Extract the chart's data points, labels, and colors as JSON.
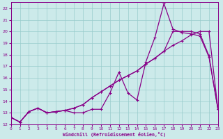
{
  "xlabel": "Windchill (Refroidissement éolien,°C)",
  "xlim": [
    0,
    23
  ],
  "ylim": [
    12,
    22.5
  ],
  "xticks": [
    0,
    1,
    2,
    3,
    4,
    5,
    6,
    7,
    8,
    9,
    10,
    11,
    12,
    13,
    14,
    15,
    16,
    17,
    18,
    19,
    20,
    21,
    22,
    23
  ],
  "yticks": [
    12,
    13,
    14,
    15,
    16,
    17,
    18,
    19,
    20,
    21,
    22
  ],
  "bg_color": "#cceaea",
  "line_color": "#880088",
  "grid_color": "#99cccc",
  "line1_x": [
    0,
    1,
    2,
    3,
    4,
    5,
    6,
    7,
    8,
    9,
    10,
    11,
    12,
    13,
    14,
    15,
    16,
    17,
    18,
    19,
    20,
    21,
    22,
    23
  ],
  "line1_y": [
    12.6,
    12.2,
    13.1,
    13.4,
    13.0,
    13.1,
    13.2,
    13.4,
    13.7,
    14.3,
    14.8,
    15.3,
    15.8,
    16.2,
    16.6,
    17.2,
    17.7,
    18.3,
    18.8,
    19.2,
    19.7,
    20.0,
    20.0,
    13.3
  ],
  "line2_x": [
    0,
    1,
    2,
    3,
    4,
    5,
    6,
    7,
    8,
    9,
    10,
    11,
    12,
    13,
    14,
    15,
    16,
    17,
    18,
    19,
    20,
    21,
    22,
    23
  ],
  "line2_y": [
    12.6,
    12.2,
    13.1,
    13.4,
    13.0,
    13.1,
    13.2,
    13.4,
    13.7,
    14.3,
    14.8,
    15.3,
    15.8,
    16.2,
    16.6,
    17.2,
    17.7,
    18.3,
    20.0,
    20.0,
    20.0,
    19.8,
    17.9,
    13.3
  ],
  "line3_x": [
    0,
    1,
    2,
    3,
    4,
    5,
    6,
    7,
    8,
    9,
    10,
    11,
    12,
    13,
    14,
    15,
    16,
    17,
    18,
    19,
    20,
    21,
    22,
    23
  ],
  "line3_y": [
    12.6,
    12.2,
    13.1,
    13.4,
    13.0,
    13.1,
    13.2,
    13.0,
    13.0,
    13.3,
    13.3,
    14.7,
    16.5,
    14.7,
    14.1,
    17.4,
    19.5,
    22.4,
    20.2,
    19.9,
    19.8,
    19.6,
    17.8,
    13.3
  ]
}
